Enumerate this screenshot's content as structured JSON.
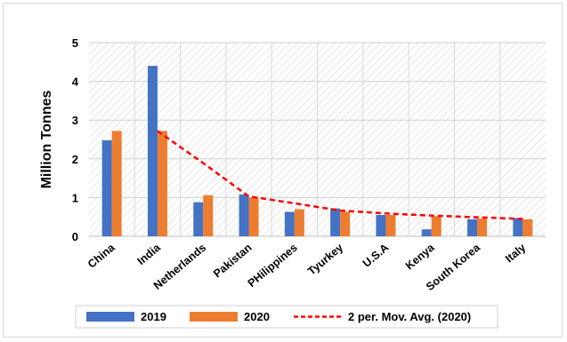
{
  "chart_data": {
    "type": "bar",
    "categories": [
      "China",
      "India",
      "Netherlands",
      "Pakistan",
      "PHilippines",
      "Tyurkey",
      "U.S.A",
      "Kenya",
      "South Korea",
      "Italy"
    ],
    "series": [
      {
        "name": "2019",
        "type": "bar",
        "color": "#4472c4",
        "values": [
          2.48,
          4.4,
          0.88,
          1.08,
          0.63,
          0.72,
          0.55,
          0.18,
          0.44,
          0.47
        ]
      },
      {
        "name": "2020",
        "type": "bar",
        "color": "#ed7d31",
        "values": [
          2.72,
          2.72,
          1.06,
          1.0,
          0.7,
          0.63,
          0.55,
          0.52,
          0.46,
          0.44
        ]
      },
      {
        "name": "2 per. Mov. Avg. (2020)",
        "type": "line",
        "style": "dashed",
        "color": "#ff0000",
        "values": [
          null,
          2.72,
          1.89,
          1.03,
          0.85,
          0.665,
          0.59,
          0.535,
          0.49,
          0.45
        ]
      }
    ],
    "ylabel": "Million Tonnes",
    "ylim": [
      0,
      5
    ],
    "yticks": [
      "0",
      "1",
      "2",
      "3",
      "4",
      "5"
    ],
    "grid": true,
    "legend_position": "bottom",
    "plot_background": "hatched"
  }
}
